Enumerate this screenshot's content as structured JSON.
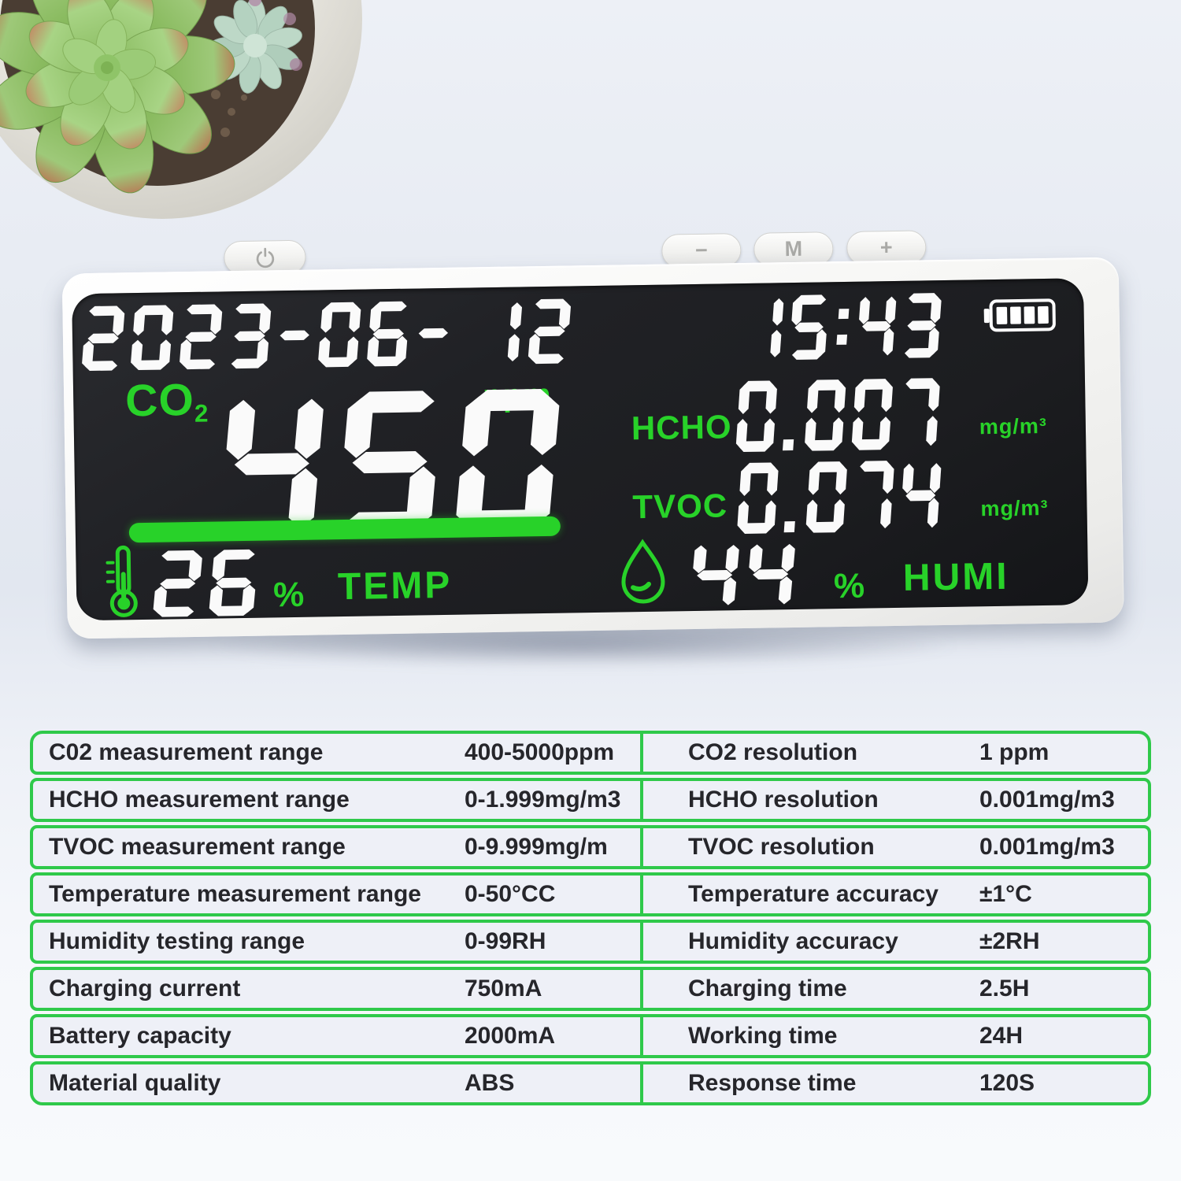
{
  "device": {
    "buttons": {
      "power_icon": "power",
      "minus_label": "−",
      "mode_label": "M",
      "plus_label": "+"
    },
    "display": {
      "date": "2023-06- 12",
      "time": "15:43",
      "battery_bars": 4,
      "co2": {
        "label": "CO",
        "sub": "2",
        "unit": "ppm",
        "value": "450"
      },
      "hcho": {
        "label": "HCHO",
        "value": "0.007",
        "unit": "mg/m³"
      },
      "tvoc": {
        "label": "TVOC",
        "value": "0.074",
        "unit": "mg/m³"
      },
      "temperature": {
        "value": "26",
        "unit": "%",
        "label": "TEMP"
      },
      "humidity": {
        "value": "44",
        "unit": "%",
        "label": "HUMI"
      }
    }
  },
  "spec_table": {
    "rows": [
      {
        "left_label": "C02 measurement range",
        "left_value": "400-5000ppm",
        "right_label": "CO2 resolution",
        "right_value": "1 ppm"
      },
      {
        "left_label": "HCHO measurement range",
        "left_value": "0-1.999mg/m3",
        "right_label": "HCHO resolution",
        "right_value": "0.001mg/m3"
      },
      {
        "left_label": "TVOC measurement range",
        "left_value": "0-9.999mg/m",
        "right_label": "TVOC resolution",
        "right_value": "0.001mg/m3"
      },
      {
        "left_label": "Temperature measurement range",
        "left_value": "0-50°CC",
        "right_label": "Temperature accuracy",
        "right_value": "±1°C"
      },
      {
        "left_label": "Humidity testing range",
        "left_value": "0-99RH",
        "right_label": "Humidity accuracy",
        "right_value": "±2RH"
      },
      {
        "left_label": "Charging current",
        "left_value": "750mA",
        "right_label": "Charging time",
        "right_value": "2.5H"
      },
      {
        "left_label": "Battery capacity",
        "left_value": "2000mA",
        "right_label": "Working time",
        "right_value": "24H"
      },
      {
        "left_label": "Material quality",
        "left_value": "ABS",
        "right_label": "Response time",
        "right_value": "120S"
      }
    ]
  },
  "colors": {
    "screen_green": "#28d229",
    "table_border_green": "#2fc94a",
    "segment_white": "#fafafa",
    "screen_background": "#1c1d20"
  }
}
